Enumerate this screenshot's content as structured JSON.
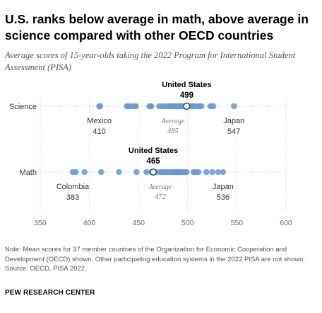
{
  "title": "U.S. ranks below average in math, above average in science compared with other OECD countries",
  "subtitle": "Average scores of 15-year-olds taking the 2022 Program for International Student Assessment (PISA)",
  "note": "Note: Mean scores for 37 member countries of the Organization for Economic Cooperation and Development (OECD) shown. Other participating education systems in the 2022 PISA are not shown.",
  "source": "Source: OECD, PISA 2022.",
  "brand": "PEW RESEARCH CENTER",
  "colors": {
    "dot": "#6a98cd",
    "us_dot_fill": "#ffffff",
    "us_dot_stroke": "#1f3a5f",
    "gridline": "#d0d0d0"
  },
  "chart_data": {
    "type": "scatter",
    "xlim": [
      350,
      600
    ],
    "x_ticks": [
      "350",
      "400",
      "450",
      "500",
      "550",
      "600"
    ],
    "series": [
      {
        "name": "Science",
        "values": [
          410,
          411,
          438,
          440,
          443,
          447,
          447,
          461,
          463,
          471,
          474,
          477,
          480,
          482,
          484,
          485,
          487,
          488,
          490,
          491,
          492,
          493,
          494,
          496,
          498,
          499,
          500,
          503,
          504,
          505,
          507,
          510,
          512,
          514,
          523,
          526,
          547
        ],
        "average": 485,
        "us": 499,
        "annotations": [
          {
            "label": "United States",
            "score": "499"
          },
          {
            "label": "Mexico",
            "score": "410"
          },
          {
            "label": "Average",
            "score": "485"
          },
          {
            "label": "Japan",
            "score": "547"
          }
        ]
      },
      {
        "name": "Math",
        "values": [
          383,
          386,
          395,
          412,
          430,
          448,
          458,
          463,
          465,
          468,
          472,
          474,
          475,
          477,
          479,
          480,
          482,
          484,
          485,
          487,
          487,
          488,
          489,
          489,
          490,
          492,
          493,
          495,
          497,
          499,
          506,
          508,
          511,
          519,
          525,
          531,
          536
        ],
        "average": 472,
        "us": 465,
        "annotations": [
          {
            "label": "United States",
            "score": "465"
          },
          {
            "label": "Colombia",
            "score": "383"
          },
          {
            "label": "Average",
            "score": "472"
          },
          {
            "label": "Japan",
            "score": "536"
          }
        ]
      }
    ]
  }
}
